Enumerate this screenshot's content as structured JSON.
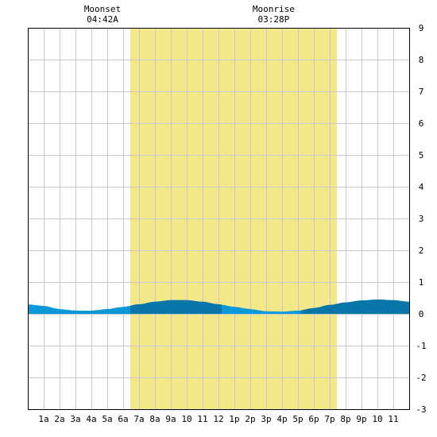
{
  "chart_data": {
    "type": "area",
    "x_hours_ticks": [
      "1a",
      "2a",
      "3a",
      "4a",
      "5a",
      "6a",
      "7a",
      "8a",
      "9a",
      "10",
      "11",
      "12",
      "1p",
      "2p",
      "3p",
      "4p",
      "5p",
      "6p",
      "7p",
      "8p",
      "9p",
      "10",
      "11"
    ],
    "y_ticks": [
      "9",
      "8",
      "7",
      "6",
      "5",
      "4",
      "3",
      "2",
      "1",
      "0",
      "-1",
      "-2",
      "-3"
    ],
    "ylim": [
      -3,
      9
    ],
    "xlim_hours": [
      0,
      24
    ],
    "grid": true,
    "daylight_hours": [
      6.45,
      19.45
    ],
    "annotations": [
      {
        "label": "Moonset",
        "time": "04:42A",
        "hour": 4.7
      },
      {
        "label": "Moonrise",
        "time": "03:28P",
        "hour": 15.47
      }
    ],
    "series": [
      {
        "x": [
          0,
          1,
          2,
          3,
          4,
          5,
          6,
          7,
          8,
          9,
          10,
          11,
          12,
          13,
          14,
          15,
          16,
          17,
          18,
          19,
          20,
          21,
          22,
          23,
          24
        ],
        "values": [
          0.3,
          0.25,
          0.15,
          0.1,
          0.1,
          0.15,
          0.22,
          0.3,
          0.38,
          0.43,
          0.43,
          0.38,
          0.3,
          0.22,
          0.15,
          0.08,
          0.07,
          0.1,
          0.18,
          0.28,
          0.36,
          0.42,
          0.45,
          0.43,
          0.38
        ]
      }
    ],
    "colors": {
      "daylight": "#f2e88a",
      "tide_light": "#0a98d8",
      "tide_dark": "#0675a8",
      "grid": "#c8c8c8",
      "axis": "#000000"
    }
  }
}
